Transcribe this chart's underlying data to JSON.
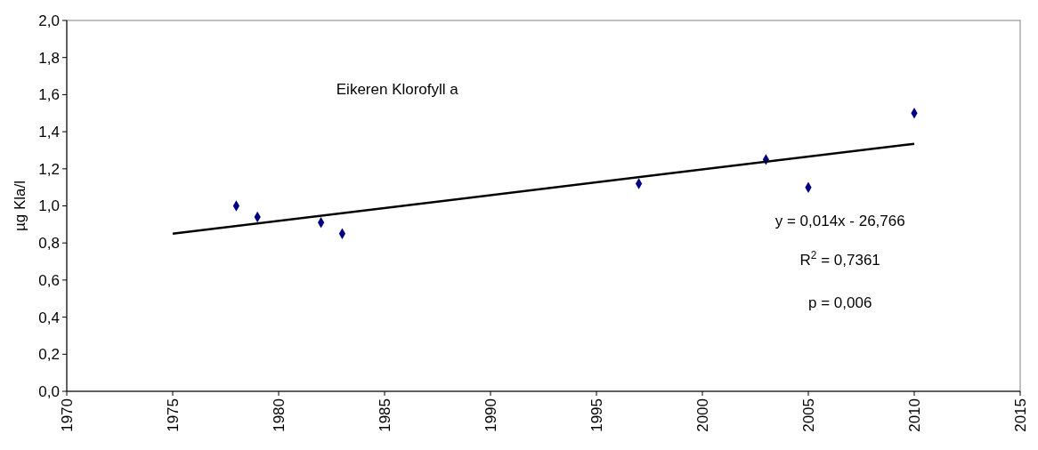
{
  "chart_data": {
    "type": "scatter",
    "ylabel": "µg Kla/l",
    "grid": false,
    "annotations": [
      "Eikeren Klorofyll a",
      "y = 0,014x - 26,766",
      "R$^{2}$ = 0,7361",
      "p = 0,006"
    ],
    "xlim": [
      1970,
      2015
    ],
    "xticks": [
      1970,
      1975,
      1980,
      1985,
      1990,
      1995,
      2000,
      2005,
      2010,
      2015
    ],
    "ylim": [
      0,
      2
    ],
    "yticks": [
      {
        "value": 0,
        "label": "0,0"
      },
      {
        "value": 0.2,
        "label": "0,2"
      },
      {
        "value": 0.4,
        "label": "0,4"
      },
      {
        "value": 0.6,
        "label": "0,6"
      },
      {
        "value": 0.8,
        "label": "0,8"
      },
      {
        "value": 1,
        "label": "1,0"
      },
      {
        "value": 1.2,
        "label": "1,2"
      },
      {
        "value": 1.4,
        "label": "1,4"
      },
      {
        "value": 1.6,
        "label": "1,6"
      },
      {
        "value": 1.8,
        "label": "1,8"
      },
      {
        "value": 2,
        "label": "2,0"
      }
    ],
    "series": [
      {
        "marker": "diamond",
        "color": "#000080",
        "x": [
          1978,
          1979,
          1982,
          1983,
          1997,
          2003,
          2005,
          2010
        ],
        "values": [
          1.0,
          0.94,
          0.91,
          0.85,
          1.12,
          1.25,
          1.1,
          1.5
        ]
      },
      {
        "type": "line",
        "color": "#000000",
        "x": [
          1975,
          2010
        ],
        "values": [
          0.85,
          1.335
        ]
      }
    ]
  }
}
